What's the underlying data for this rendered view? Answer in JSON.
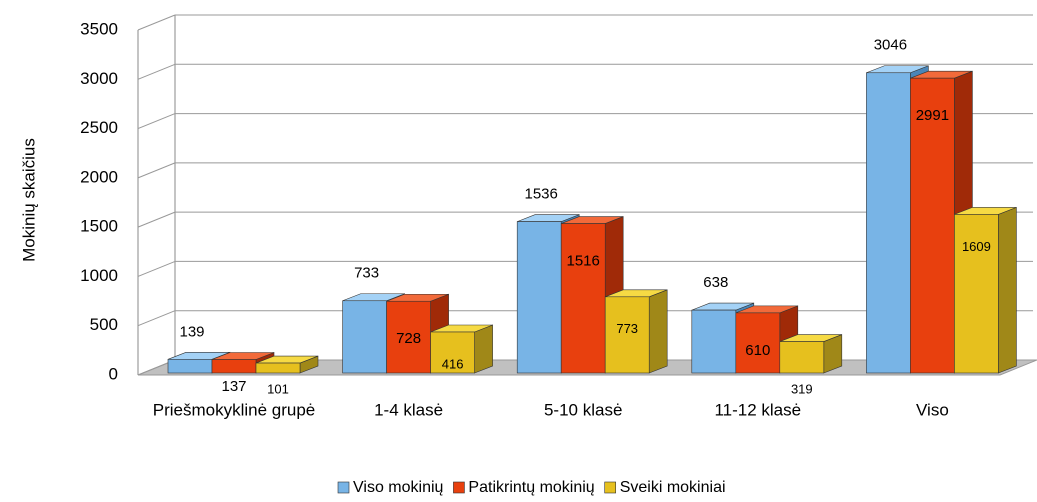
{
  "chart_data": {
    "type": "bar3d",
    "y_label": "Mokinių skaičius",
    "categories": [
      "Priešmokyklinė grupė",
      "1-4 klasė",
      "5-10 klasė",
      "11-12 klasė",
      "Viso"
    ],
    "series": [
      {
        "name": "Viso mokinių",
        "color": "#78b4e6",
        "values": [
          139,
          733,
          1536,
          638,
          3046
        ]
      },
      {
        "name": "Patikrintų mokinių",
        "color": "#e8400e",
        "values": [
          137,
          728,
          1516,
          610,
          2991
        ]
      },
      {
        "name": "Sveiki mokiniai",
        "color": "#e6c01e",
        "values": [
          101,
          416,
          773,
          319,
          1609
        ]
      }
    ],
    "ylim": [
      0,
      3500
    ],
    "yticks": [
      0,
      500,
      1000,
      1500,
      2000,
      2500,
      3000,
      3500
    ],
    "grid": true,
    "legend": "bottom"
  }
}
